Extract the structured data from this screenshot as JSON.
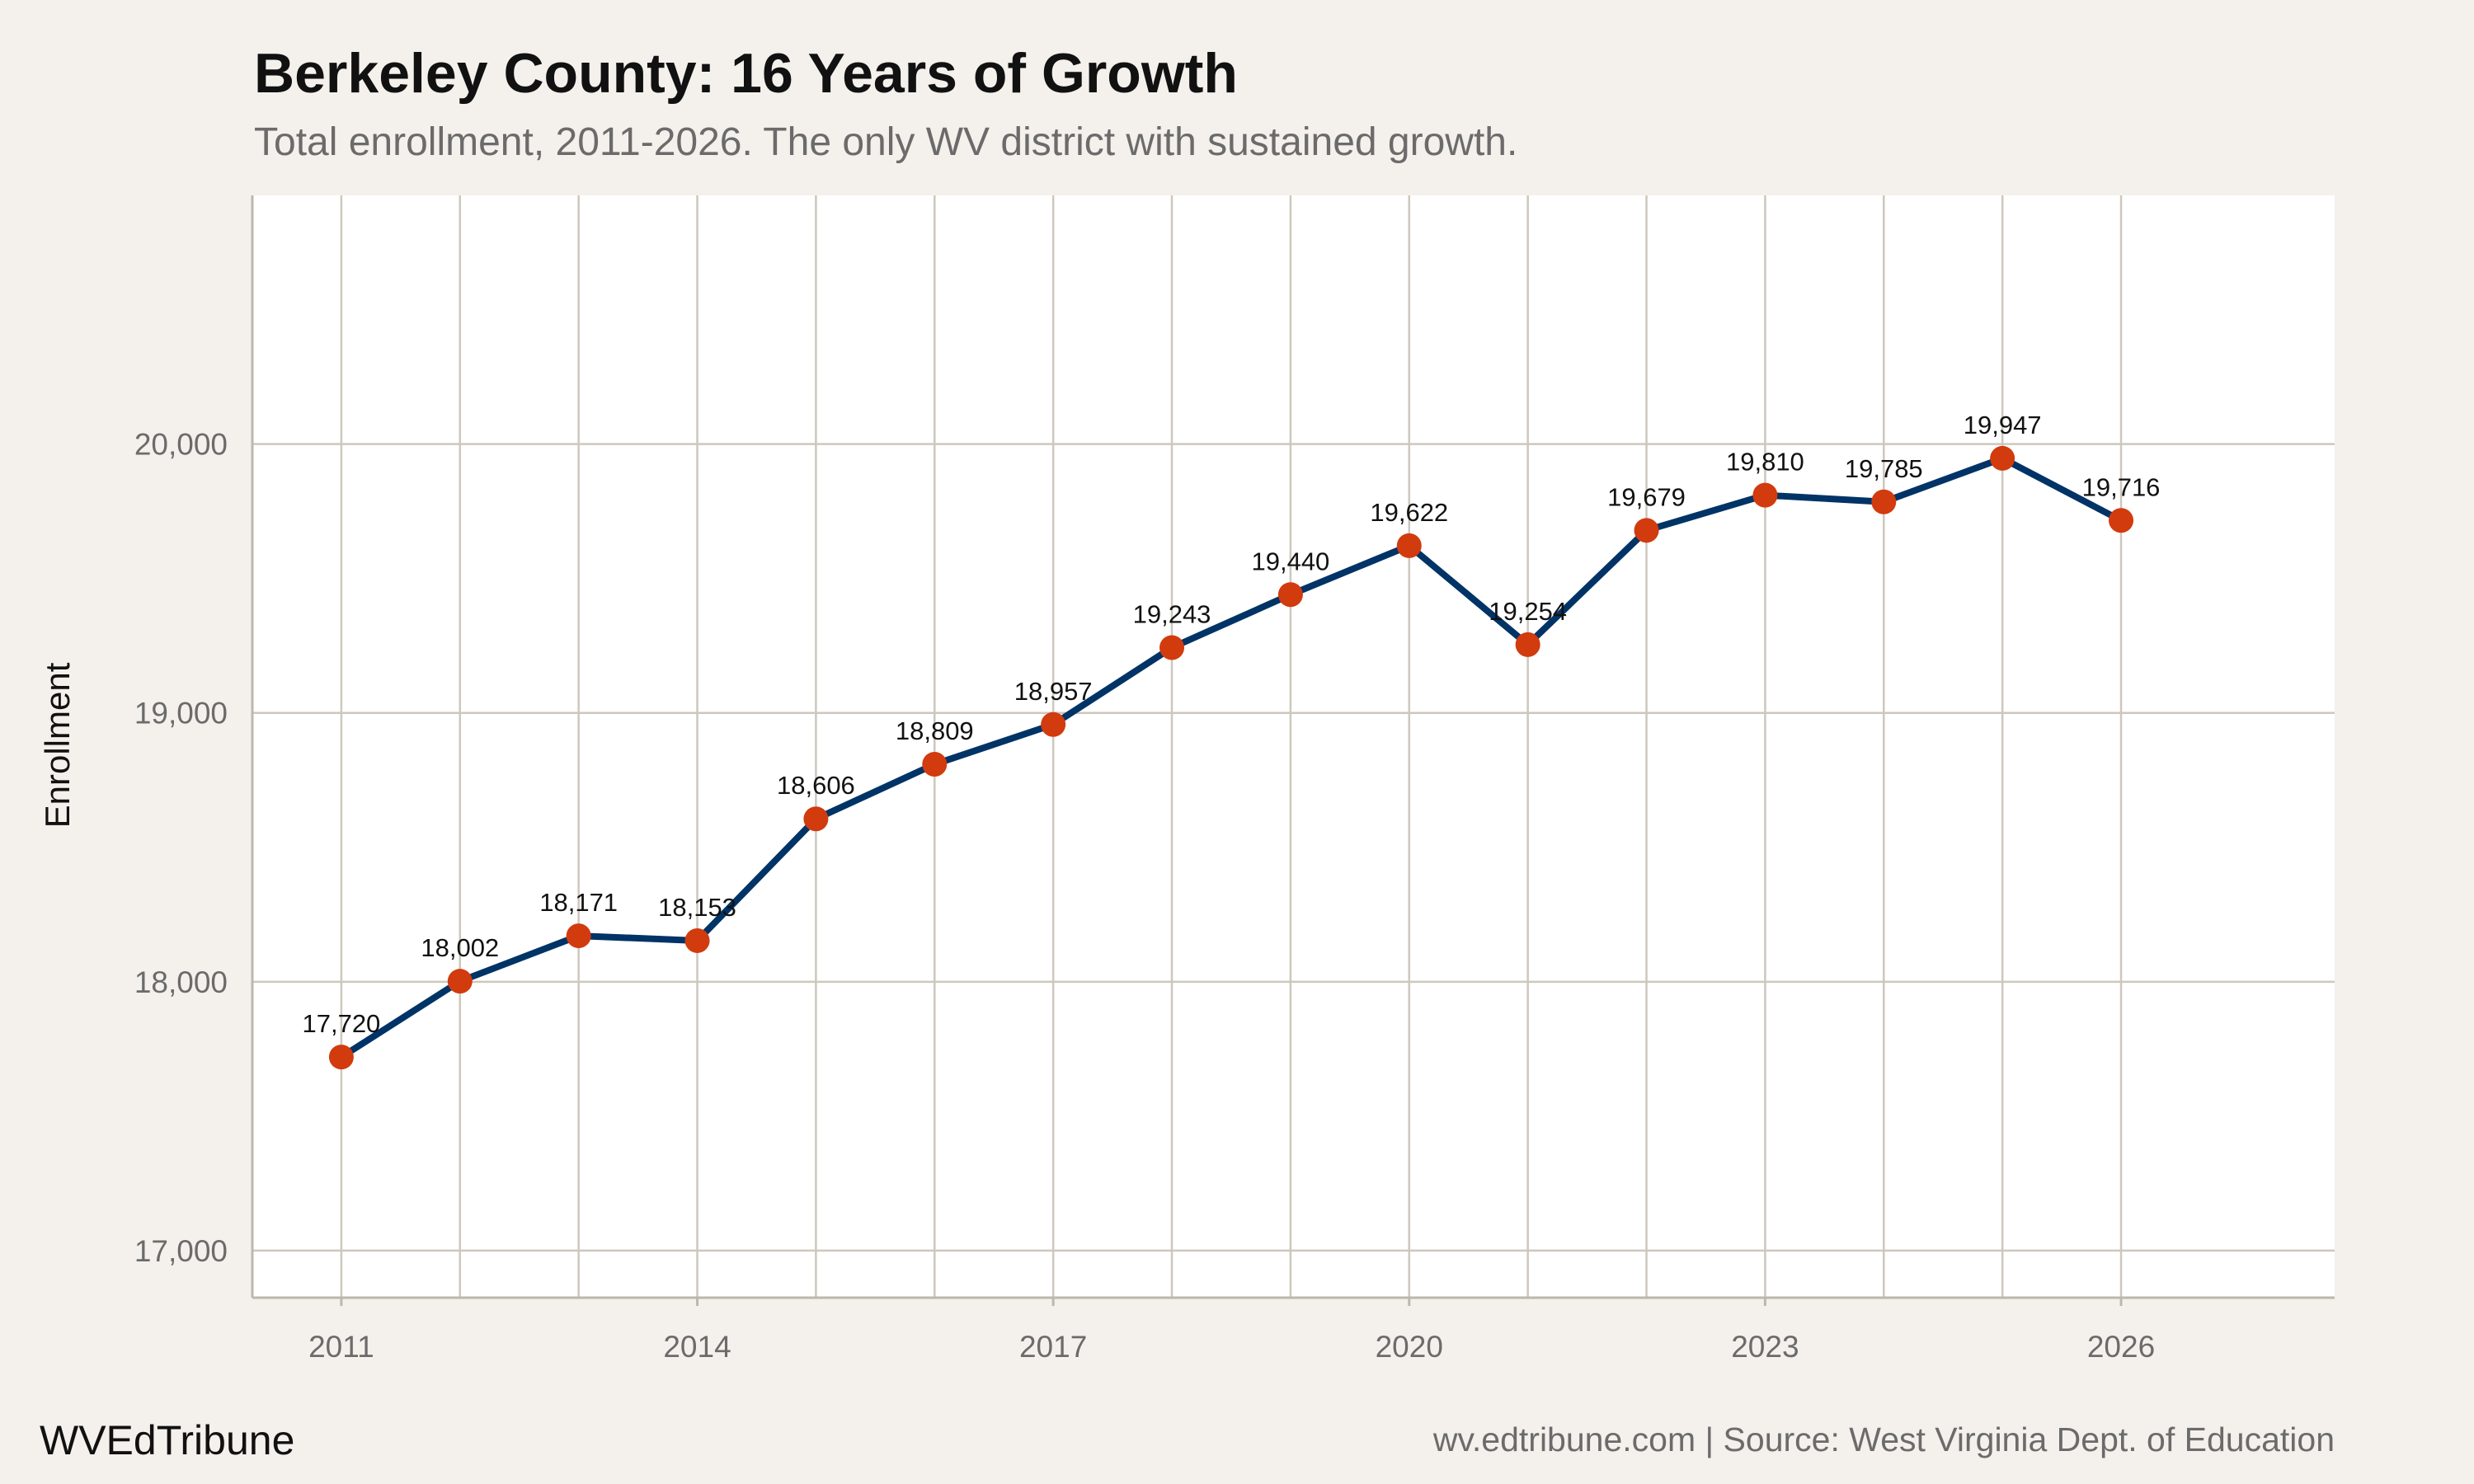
{
  "chart_data": {
    "type": "line",
    "title": "Berkeley County: 16 Years of Growth",
    "subtitle": "Total enrollment, 2011-2026. The only WV district with sustained growth.",
    "xlabel": "",
    "ylabel": "Enrollment",
    "x": [
      2011,
      2012,
      2013,
      2014,
      2015,
      2016,
      2017,
      2018,
      2019,
      2020,
      2021,
      2022,
      2023,
      2024,
      2025,
      2026
    ],
    "values": [
      17720,
      18002,
      18171,
      18153,
      18606,
      18809,
      18957,
      19243,
      19440,
      19622,
      19254,
      19679,
      19810,
      19785,
      19947,
      19716
    ],
    "data_labels": [
      "17,720",
      "18,002",
      "18,171",
      "18,153",
      "18,606",
      "18,809",
      "18,957",
      "19,243",
      "19,440",
      "19,622",
      "19,254",
      "19,679",
      "19,810",
      "19,785",
      "19,947",
      "19,716"
    ],
    "xticks": [
      2011,
      2014,
      2017,
      2020,
      2023,
      2026
    ],
    "xtick_labels": [
      "2011",
      "2014",
      "2017",
      "2020",
      "2023",
      "2026"
    ],
    "yticks": [
      17000,
      18000,
      19000,
      20000
    ],
    "ytick_labels": [
      "17,000",
      "18,000",
      "19,000",
      "20,000"
    ],
    "xlim": [
      2010.25,
      2027.8
    ],
    "ylim": [
      16825,
      20925
    ],
    "grid": true,
    "legend": "none",
    "colors": {
      "line": "#003366",
      "points": "#d13b0e",
      "background": "#f4f1ec",
      "panel": "#ffffff",
      "grid": "#cdc7bd"
    }
  },
  "footer": {
    "brand": "WVEdTribune",
    "source": "wv.edtribune.com | Source: West Virginia Dept. of Education"
  }
}
